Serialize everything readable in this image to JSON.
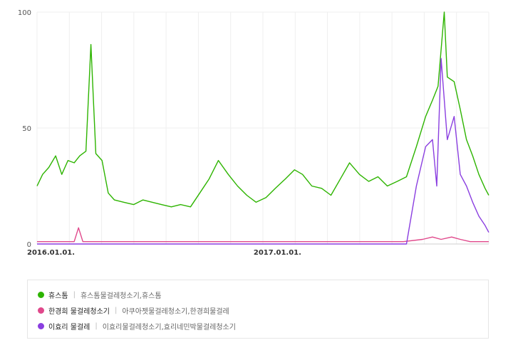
{
  "chart_data": {
    "type": "line",
    "x_start": "2016-01-01",
    "x_end": "2017-12-31",
    "x_ticks": [
      {
        "date": "2016-01-01",
        "label": "2016.01.01."
      },
      {
        "date": "2017-01-01",
        "label": "2017.01.01."
      }
    ],
    "ylim": [
      0,
      100
    ],
    "y_ticks": [
      0,
      50,
      100
    ],
    "grid": true,
    "legend_position": "bottom",
    "series": [
      {
        "name": "휴스톰",
        "keywords": "휴스톰물걸레청소기,휴스톰",
        "color": "#2db400",
        "points": [
          [
            "2016-01-01",
            25
          ],
          [
            "2016-01-10",
            30
          ],
          [
            "2016-01-20",
            33
          ],
          [
            "2016-01-31",
            38
          ],
          [
            "2016-02-10",
            30
          ],
          [
            "2016-02-20",
            36
          ],
          [
            "2016-03-01",
            35
          ],
          [
            "2016-03-10",
            38
          ],
          [
            "2016-03-20",
            40
          ],
          [
            "2016-03-28",
            86
          ],
          [
            "2016-04-05",
            39
          ],
          [
            "2016-04-15",
            36
          ],
          [
            "2016-04-25",
            22
          ],
          [
            "2016-05-05",
            19
          ],
          [
            "2016-05-20",
            18
          ],
          [
            "2016-06-05",
            17
          ],
          [
            "2016-06-20",
            19
          ],
          [
            "2016-07-05",
            18
          ],
          [
            "2016-07-20",
            17
          ],
          [
            "2016-08-05",
            16
          ],
          [
            "2016-08-20",
            17
          ],
          [
            "2016-09-05",
            16
          ],
          [
            "2016-09-20",
            22
          ],
          [
            "2016-10-05",
            28
          ],
          [
            "2016-10-20",
            36
          ],
          [
            "2016-11-05",
            30
          ],
          [
            "2016-11-20",
            25
          ],
          [
            "2016-12-05",
            21
          ],
          [
            "2016-12-20",
            18
          ],
          [
            "2017-01-05",
            20
          ],
          [
            "2017-01-20",
            24
          ],
          [
            "2017-02-05",
            28
          ],
          [
            "2017-02-20",
            32
          ],
          [
            "2017-03-05",
            30
          ],
          [
            "2017-03-20",
            25
          ],
          [
            "2017-04-05",
            24
          ],
          [
            "2017-04-20",
            21
          ],
          [
            "2017-05-05",
            28
          ],
          [
            "2017-05-20",
            35
          ],
          [
            "2017-06-05",
            30
          ],
          [
            "2017-06-20",
            27
          ],
          [
            "2017-07-05",
            29
          ],
          [
            "2017-07-20",
            25
          ],
          [
            "2017-08-05",
            27
          ],
          [
            "2017-08-20",
            29
          ],
          [
            "2017-09-05",
            42
          ],
          [
            "2017-09-20",
            55
          ],
          [
            "2017-10-01",
            62
          ],
          [
            "2017-10-10",
            68
          ],
          [
            "2017-10-20",
            100
          ],
          [
            "2017-10-25",
            72
          ],
          [
            "2017-11-05",
            70
          ],
          [
            "2017-11-15",
            58
          ],
          [
            "2017-11-25",
            45
          ],
          [
            "2017-12-05",
            38
          ],
          [
            "2017-12-15",
            30
          ],
          [
            "2017-12-25",
            24
          ],
          [
            "2017-12-31",
            21
          ]
        ]
      },
      {
        "name": "한경희 물걸레청소기",
        "keywords": "아쿠아젯물걸레청소기,한경희물걸레",
        "color": "#e0488b",
        "points": [
          [
            "2016-01-01",
            1
          ],
          [
            "2016-02-15",
            1
          ],
          [
            "2016-03-01",
            1
          ],
          [
            "2016-03-08",
            7
          ],
          [
            "2016-03-15",
            1
          ],
          [
            "2016-05-01",
            1
          ],
          [
            "2016-07-01",
            1
          ],
          [
            "2016-09-01",
            1
          ],
          [
            "2016-11-01",
            1
          ],
          [
            "2017-01-01",
            1
          ],
          [
            "2017-03-01",
            1
          ],
          [
            "2017-05-01",
            1
          ],
          [
            "2017-07-01",
            1
          ],
          [
            "2017-08-15",
            1
          ],
          [
            "2017-09-15",
            2
          ],
          [
            "2017-10-01",
            3
          ],
          [
            "2017-10-15",
            2
          ],
          [
            "2017-11-01",
            3
          ],
          [
            "2017-11-15",
            2
          ],
          [
            "2017-12-01",
            1
          ],
          [
            "2017-12-31",
            1
          ]
        ]
      },
      {
        "name": "이효리 물걸레",
        "keywords": "이효리물걸레청소기,효리네민박물걸레청소기",
        "color": "#8a3ee0",
        "points": [
          [
            "2016-01-01",
            0
          ],
          [
            "2016-06-01",
            0
          ],
          [
            "2017-01-01",
            0
          ],
          [
            "2017-06-01",
            0
          ],
          [
            "2017-08-20",
            0
          ],
          [
            "2017-09-05",
            25
          ],
          [
            "2017-09-20",
            42
          ],
          [
            "2017-10-01",
            45
          ],
          [
            "2017-10-08",
            25
          ],
          [
            "2017-10-15",
            80
          ],
          [
            "2017-10-25",
            45
          ],
          [
            "2017-11-05",
            55
          ],
          [
            "2017-11-15",
            30
          ],
          [
            "2017-11-25",
            25
          ],
          [
            "2017-12-05",
            18
          ],
          [
            "2017-12-15",
            12
          ],
          [
            "2017-12-25",
            8
          ],
          [
            "2017-12-31",
            5
          ]
        ]
      }
    ]
  }
}
